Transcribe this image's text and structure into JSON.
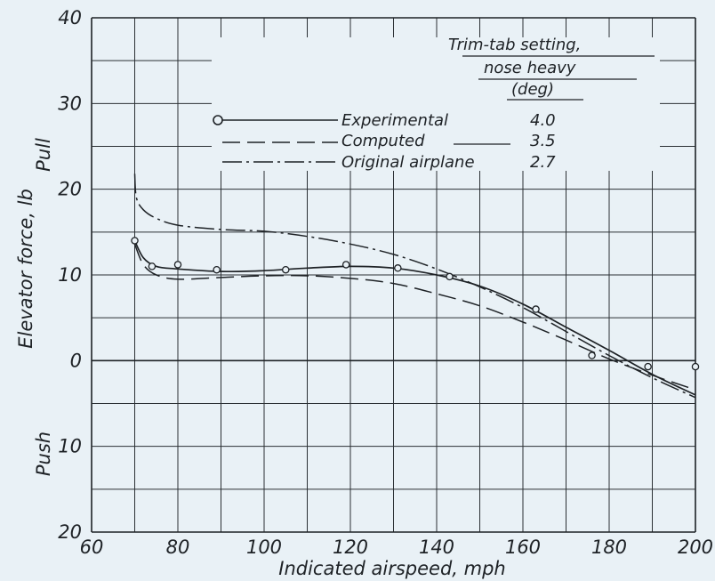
{
  "chart_data": {
    "type": "line",
    "xlabel": "Indicated airspeed, mph",
    "ylabel": "Elevator force, lb",
    "ylabel_pull": "Pull",
    "ylabel_push": "Push",
    "xlim": [
      60,
      200
    ],
    "ylim": [
      -20,
      40
    ],
    "grid": true,
    "x_ticks": [
      {
        "value": 60,
        "label": "60"
      },
      {
        "value": 80,
        "label": "80"
      },
      {
        "value": 100,
        "label": "100"
      },
      {
        "value": 120,
        "label": "120"
      },
      {
        "value": 140,
        "label": "140"
      },
      {
        "value": 160,
        "label": "160"
      },
      {
        "value": 180,
        "label": "180"
      },
      {
        "value": 200,
        "label": "200"
      }
    ],
    "y_ticks": [
      {
        "value": 40,
        "label": "40"
      },
      {
        "value": 30,
        "label": "30"
      },
      {
        "value": 20,
        "label": "20"
      },
      {
        "value": 10,
        "label": "10"
      },
      {
        "value": 0,
        "label": "0"
      },
      {
        "value": -10,
        "label": "10"
      },
      {
        "value": -20,
        "label": "20"
      }
    ],
    "legend": {
      "title_lines": [
        "Trim-tab setting,",
        "nose heavy",
        "(deg)"
      ],
      "placement": "top-right"
    },
    "series": [
      {
        "name": "Experimental",
        "setting": "4.0",
        "style": "solid-markers",
        "points": [
          [
            70,
            14.0
          ],
          [
            74,
            11.0
          ],
          [
            80,
            11.2
          ],
          [
            89,
            10.6
          ],
          [
            105,
            10.6
          ],
          [
            119,
            11.2
          ],
          [
            131,
            10.8
          ],
          [
            143,
            9.8
          ],
          [
            163,
            6.0
          ],
          [
            176,
            0.6
          ],
          [
            189,
            -0.7
          ],
          [
            200,
            -0.7
          ]
        ],
        "curve": [
          [
            70,
            14.0
          ],
          [
            72,
            12.0
          ],
          [
            75,
            11.0
          ],
          [
            80,
            10.7
          ],
          [
            90,
            10.4
          ],
          [
            100,
            10.5
          ],
          [
            110,
            10.8
          ],
          [
            120,
            11.0
          ],
          [
            130,
            10.8
          ],
          [
            140,
            10.0
          ],
          [
            150,
            8.7
          ],
          [
            160,
            6.6
          ],
          [
            170,
            3.9
          ],
          [
            180,
            1.2
          ],
          [
            190,
            -1.6
          ],
          [
            200,
            -4.0
          ]
        ]
      },
      {
        "name": "Computed",
        "setting": "3.5",
        "style": "dashed",
        "curve": [
          [
            70,
            13.6
          ],
          [
            72,
            11.2
          ],
          [
            75,
            10.0
          ],
          [
            80,
            9.5
          ],
          [
            90,
            9.7
          ],
          [
            100,
            9.9
          ],
          [
            110,
            9.9
          ],
          [
            120,
            9.6
          ],
          [
            130,
            9.0
          ],
          [
            140,
            7.8
          ],
          [
            150,
            6.4
          ],
          [
            160,
            4.5
          ],
          [
            170,
            2.4
          ],
          [
            180,
            0.2
          ],
          [
            190,
            -1.7
          ],
          [
            200,
            -3.4
          ]
        ]
      },
      {
        "name": "Original airplane",
        "setting": "2.7",
        "style": "dash-dot",
        "curve": [
          [
            70,
            21.8
          ],
          [
            70.4,
            19.0
          ],
          [
            72,
            17.6
          ],
          [
            75,
            16.6
          ],
          [
            80,
            15.8
          ],
          [
            90,
            15.3
          ],
          [
            100,
            15.1
          ],
          [
            110,
            14.5
          ],
          [
            120,
            13.6
          ],
          [
            130,
            12.4
          ],
          [
            140,
            10.7
          ],
          [
            150,
            8.6
          ],
          [
            160,
            6.2
          ],
          [
            170,
            3.4
          ],
          [
            180,
            0.6
          ],
          [
            190,
            -2.0
          ],
          [
            200,
            -4.3
          ]
        ]
      }
    ]
  },
  "colors": {
    "ink": "#1e2226",
    "grid": "#2b3034",
    "paper": "#e9f1f6"
  }
}
